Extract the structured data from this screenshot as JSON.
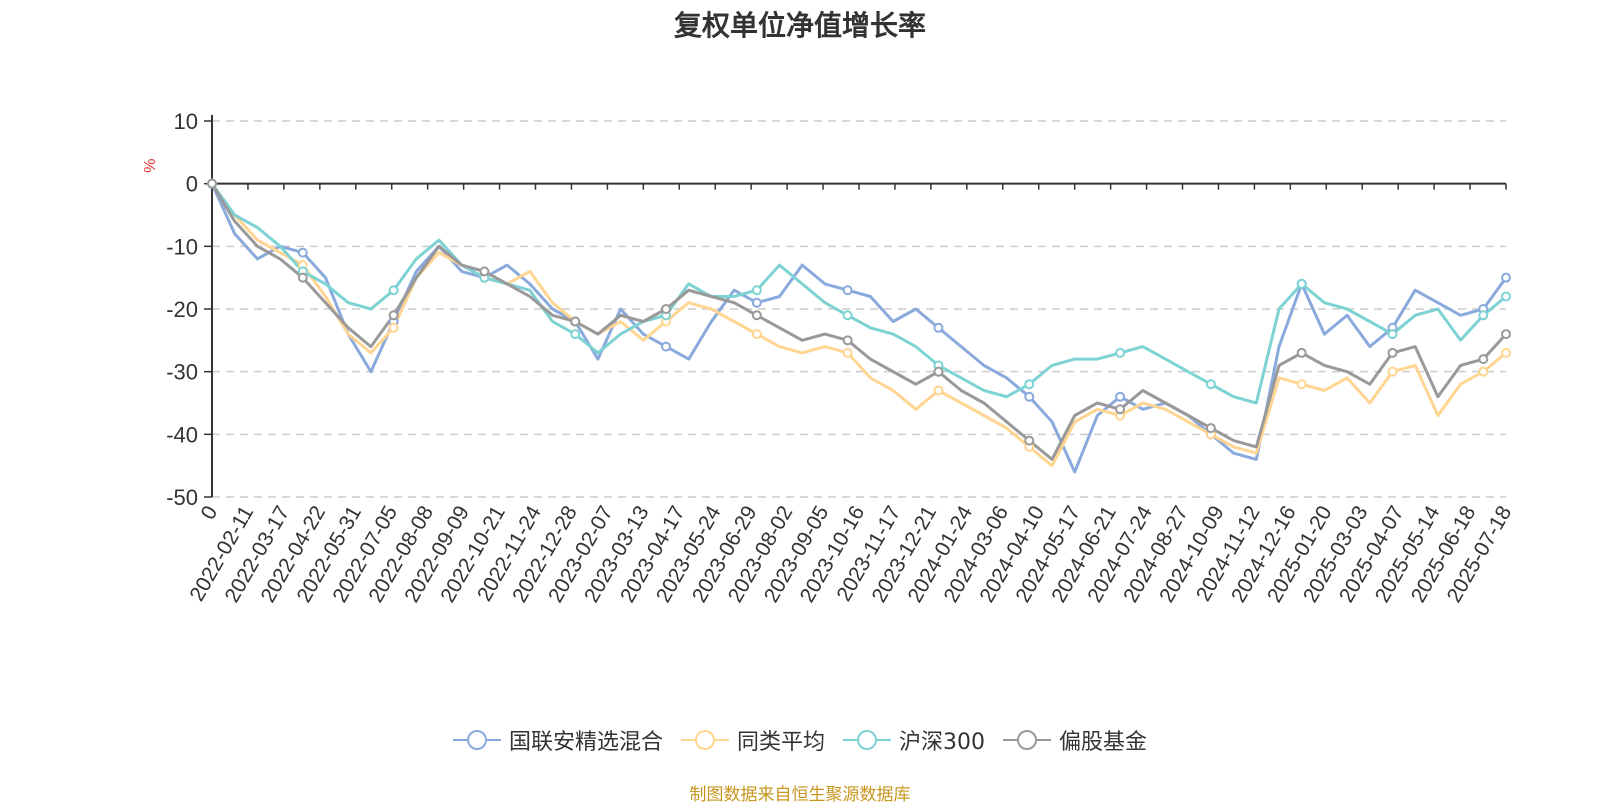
{
  "chart_data": {
    "type": "line",
    "title": "复权单位净值增长率",
    "ylabel": "%",
    "ylim": [
      -50,
      10
    ],
    "yticks": [
      10,
      0,
      -10,
      -20,
      -30,
      -40,
      -50
    ],
    "x_labels": [
      "0",
      "2022-02-11",
      "2022-03-17",
      "2022-04-22",
      "2022-05-31",
      "2022-07-05",
      "2022-08-08",
      "2022-09-09",
      "2022-10-21",
      "2022-11-24",
      "2022-12-28",
      "2023-02-07",
      "2023-03-13",
      "2023-04-17",
      "2023-05-24",
      "2023-06-29",
      "2023-08-02",
      "2023-09-05",
      "2023-10-16",
      "2023-11-17",
      "2023-12-21",
      "2024-01-24",
      "2024-03-06",
      "2024-04-10",
      "2024-05-17",
      "2024-06-21",
      "2024-07-24",
      "2024-08-27",
      "2024-10-09",
      "2024-11-12",
      "2024-12-16",
      "2025-01-20",
      "2025-03-03",
      "2025-04-07",
      "2025-05-14",
      "2025-06-18",
      "2025-07-18"
    ],
    "grid": "dashed horizontal",
    "legend_position": "bottom",
    "series": [
      {
        "name": "国联安精选混合",
        "color": "#8aa9dc",
        "values": [
          0,
          -8,
          -12,
          -10,
          -11,
          -15,
          -24,
          -30,
          -22,
          -14,
          -10,
          -14,
          -15,
          -13,
          -16,
          -20,
          -22,
          -28,
          -20,
          -24,
          -26,
          -28,
          -22,
          -17,
          -19,
          -18,
          -13,
          -16,
          -17,
          -18,
          -22,
          -20,
          -23,
          -26,
          -29,
          -31,
          -34,
          -38,
          -46,
          -37,
          -34,
          -36,
          -35,
          -37,
          -40,
          -43,
          -44,
          -26,
          -16,
          -24,
          -21,
          -26,
          -23,
          -17,
          -19,
          -21,
          -20,
          -15
        ]
      },
      {
        "name": "同类平均",
        "color": "#ffd591",
        "values": [
          0,
          -5,
          -9,
          -11,
          -13,
          -18,
          -24,
          -27,
          -23,
          -15,
          -11,
          -13,
          -15,
          -16,
          -14,
          -19,
          -22,
          -24,
          -22,
          -25,
          -22,
          -19,
          -20,
          -22,
          -24,
          -26,
          -27,
          -26,
          -27,
          -31,
          -33,
          -36,
          -33,
          -35,
          -37,
          -39,
          -42,
          -45,
          -38,
          -36,
          -37,
          -35,
          -36,
          -38,
          -40,
          -42,
          -43,
          -31,
          -32,
          -33,
          -31,
          -35,
          -30,
          -29,
          -37,
          -32,
          -30,
          -27
        ]
      },
      {
        "name": "沪深300",
        "color": "#7dd3d3",
        "values": [
          0,
          -5,
          -7,
          -10,
          -14,
          -16,
          -19,
          -20,
          -17,
          -12,
          -9,
          -13,
          -15,
          -16,
          -17,
          -22,
          -24,
          -27,
          -24,
          -22,
          -21,
          -16,
          -18,
          -18,
          -17,
          -13,
          -16,
          -19,
          -21,
          -23,
          -24,
          -26,
          -29,
          -31,
          -33,
          -34,
          -32,
          -29,
          -28,
          -28,
          -27,
          -26,
          -28,
          -30,
          -32,
          -34,
          -35,
          -20,
          -16,
          -19,
          -20,
          -22,
          -24,
          -21,
          -20,
          -25,
          -21,
          -18
        ]
      },
      {
        "name": "偏股基金",
        "color": "#999999",
        "values": [
          0,
          -6,
          -10,
          -12,
          -15,
          -19,
          -23,
          -26,
          -21,
          -15,
          -10,
          -13,
          -14,
          -16,
          -18,
          -21,
          -22,
          -24,
          -21,
          -22,
          -20,
          -17,
          -18,
          -19,
          -21,
          -23,
          -25,
          -24,
          -25,
          -28,
          -30,
          -32,
          -30,
          -33,
          -35,
          -38,
          -41,
          -44,
          -37,
          -35,
          -36,
          -33,
          -35,
          -37,
          -39,
          -41,
          -42,
          -29,
          -27,
          -29,
          -30,
          -32,
          -27,
          -26,
          -34,
          -29,
          -28,
          -24
        ]
      }
    ]
  },
  "legend": {
    "items": [
      {
        "label": "国联安精选混合",
        "color": "#8aa9dc"
      },
      {
        "label": "同类平均",
        "color": "#ffd591"
      },
      {
        "label": "沪深300",
        "color": "#7dd3d3"
      },
      {
        "label": "偏股基金",
        "color": "#999999"
      }
    ]
  },
  "footer": {
    "source_note": "制图数据来自恒生聚源数据库"
  }
}
